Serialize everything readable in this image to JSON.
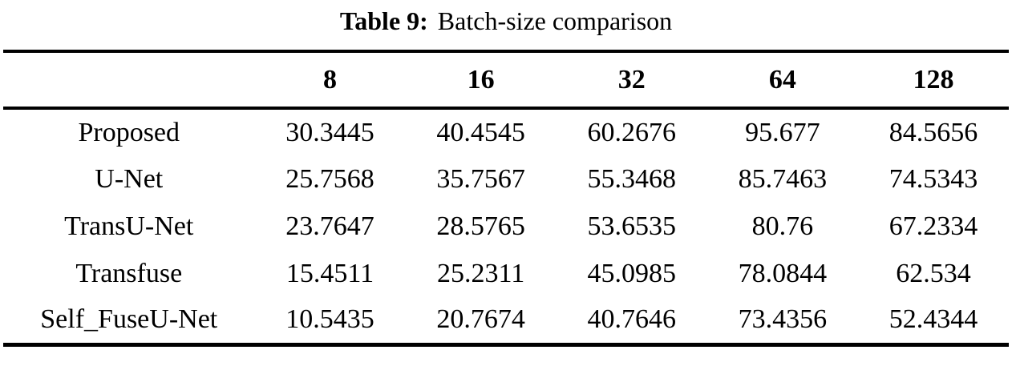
{
  "caption": {
    "label": "Table 9:",
    "text": "Batch-size comparison"
  },
  "table": {
    "columns": [
      "",
      "8",
      "16",
      "32",
      "64",
      "128"
    ],
    "rows": [
      {
        "label": "Proposed",
        "values": [
          "30.3445",
          "40.4545",
          "60.2676",
          "95.677",
          "84.5656"
        ]
      },
      {
        "label": "U-Net",
        "values": [
          "25.7568",
          "35.7567",
          "55.3468",
          "85.7463",
          "74.5343"
        ]
      },
      {
        "label": "TransU-Net",
        "values": [
          "23.7647",
          "28.5765",
          "53.6535",
          "80.76",
          "67.2334"
        ]
      },
      {
        "label": "Transfuse",
        "values": [
          "15.4511",
          "25.2311",
          "45.0985",
          "78.0844",
          "62.534"
        ]
      },
      {
        "label": "Self_FuseU-Net",
        "values": [
          "10.5435",
          "20.7674",
          "40.7646",
          "73.4356",
          "52.4344"
        ]
      }
    ]
  },
  "colors": {
    "text": "#000000",
    "rule": "#000000",
    "background": "#ffffff"
  }
}
